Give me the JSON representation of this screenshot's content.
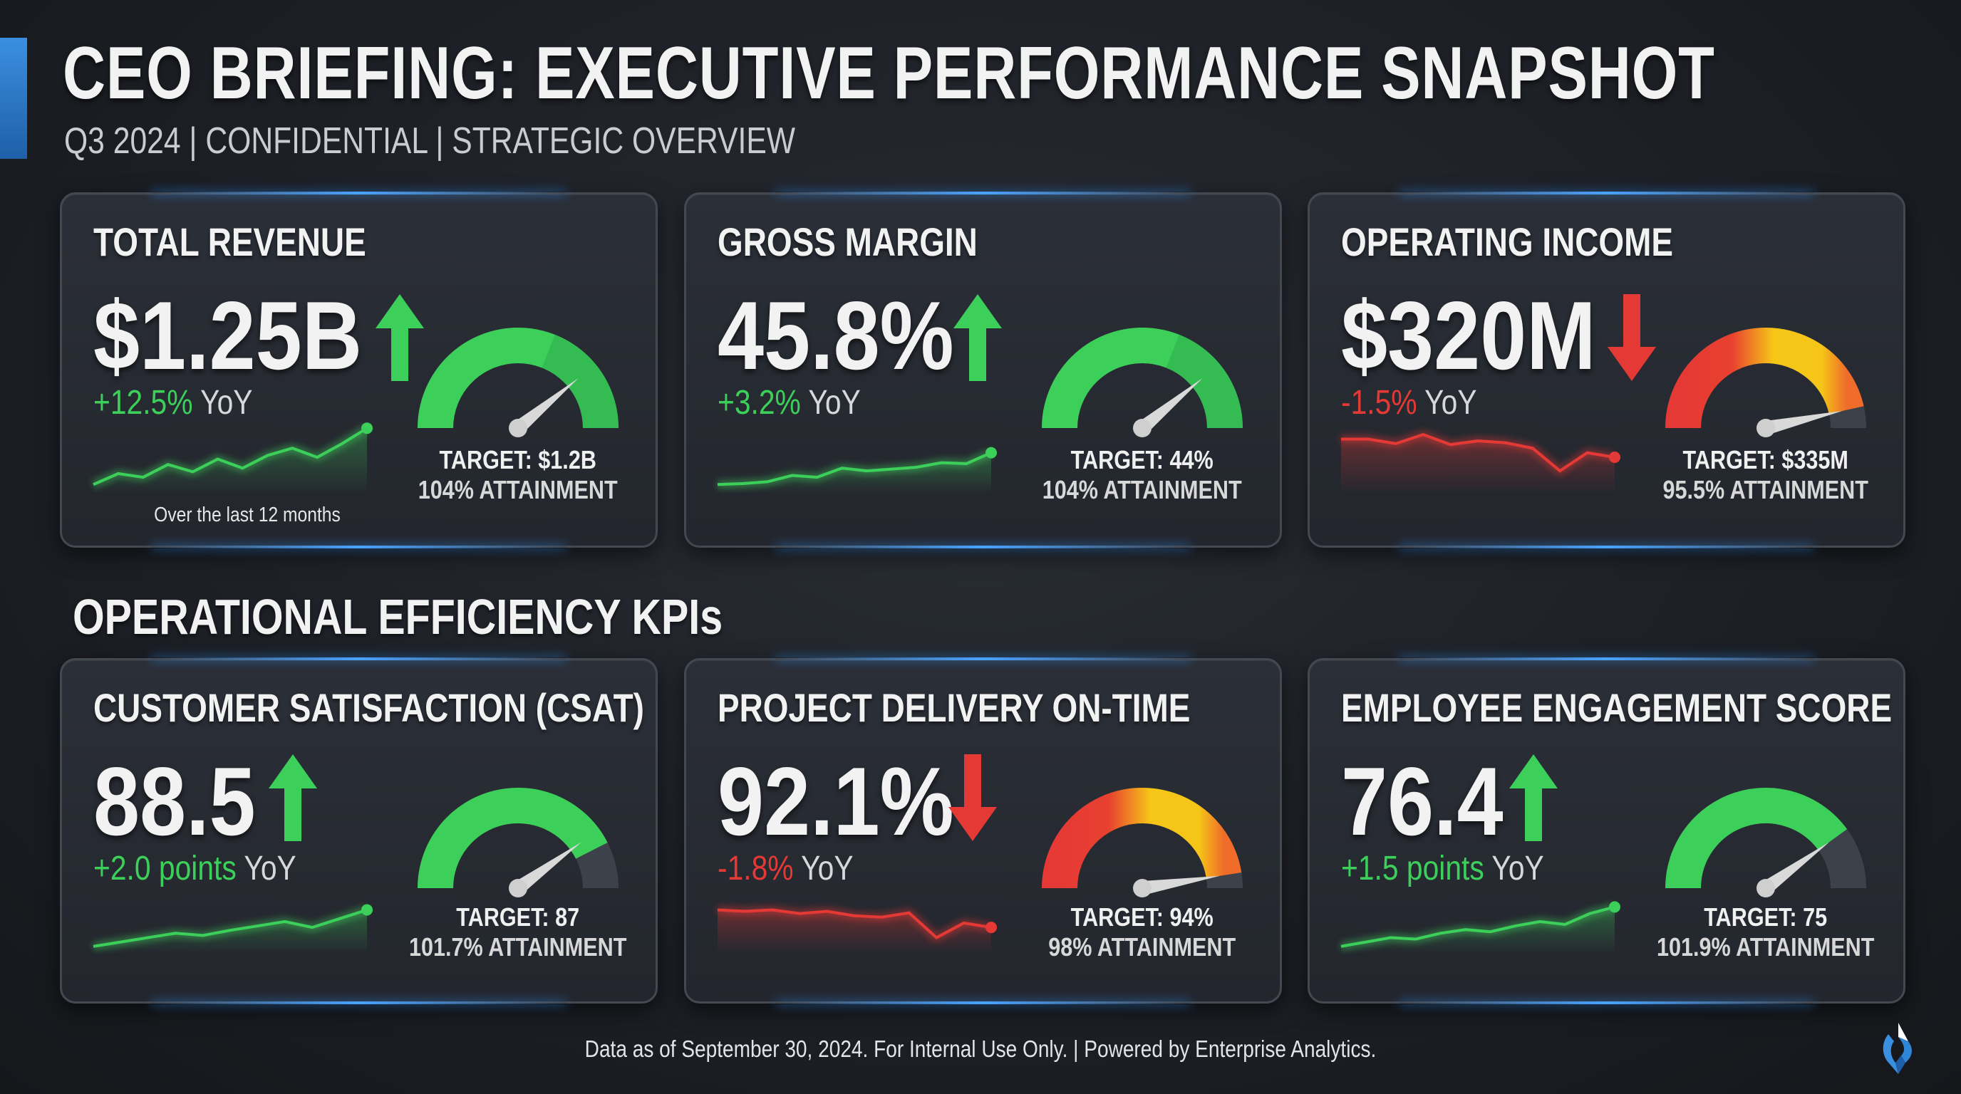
{
  "header": {
    "title": "CEO BRIEFING: EXECUTIVE PERFORMANCE SNAPSHOT",
    "subtitle": "Q3 2024 | CONFIDENTIAL | STRATEGIC OVERVIEW"
  },
  "section_heading": "OPERATIONAL EFFICIENCY KPIs",
  "colors": {
    "positive": "#3ccf5a",
    "negative": "#e53935",
    "warning": "#f5c518",
    "accent": "#3b8fe0"
  },
  "cards": [
    {
      "title": "TOTAL REVENUE",
      "value": "$1.25B",
      "arrow": "up",
      "change": "+12.5%",
      "suffix": " YoY",
      "status": "positive",
      "target": "TARGET: $1.2B",
      "attainment": "104% ATTAINMENT",
      "gauge_fill": 1.0,
      "needle": 0.78,
      "note": "Over the last 12 months",
      "sparkline": [
        10,
        22,
        18,
        32,
        24,
        38,
        28,
        42,
        50,
        40,
        55,
        72
      ]
    },
    {
      "title": "GROSS MARGIN",
      "value": "45.8%",
      "arrow": "up",
      "change": "+3.2%",
      "suffix": " YoY",
      "status": "positive",
      "target": "TARGET: 44%",
      "attainment": "104% ATTAINMENT",
      "gauge_fill": 1.0,
      "needle": 0.78,
      "sparkline": [
        10,
        11,
        13,
        20,
        18,
        28,
        25,
        27,
        29,
        34,
        33,
        45
      ]
    },
    {
      "title": "OPERATING INCOME",
      "value": "$320M",
      "arrow": "down",
      "change": "-1.5%",
      "suffix": " YoY",
      "status": "negative",
      "target": "TARGET: $335M",
      "attainment": "95.5% ATTAINMENT",
      "gauge_fill": 0.93,
      "needle": 0.93,
      "sparkline": [
        60,
        60,
        55,
        65,
        54,
        58,
        56,
        50,
        25,
        45,
        40
      ]
    },
    {
      "title": "CUSTOMER SATISFACTION (CSAT)",
      "value": "88.5",
      "arrow": "up",
      "change": "+2.0 points",
      "suffix": " YoY",
      "status": "positive",
      "target": "TARGET: 87",
      "attainment": "101.7% ATTAINMENT",
      "gauge_fill": 0.85,
      "needle": 0.8,
      "sparkline": [
        10,
        16,
        22,
        28,
        25,
        32,
        38,
        44,
        36,
        48,
        60
      ]
    },
    {
      "title": "PROJECT DELIVERY ON-TIME",
      "value": "92.1%",
      "arrow": "down",
      "change": "-1.8%",
      "suffix": " YoY",
      "status": "negative",
      "target": "TARGET: 94%",
      "attainment": "98% ATTAINMENT",
      "gauge_fill": 0.95,
      "needle": 0.95,
      "sparkline": [
        60,
        58,
        60,
        55,
        58,
        52,
        50,
        56,
        22,
        42,
        36
      ]
    },
    {
      "title": "EMPLOYEE ENGAGEMENT SCORE",
      "value": "76.4",
      "arrow": "up",
      "change": "+1.5 points",
      "suffix": " YoY",
      "status": "positive",
      "target": "TARGET: 75",
      "attainment": "101.9% ATTAINMENT",
      "gauge_fill": 0.8,
      "needle": 0.8,
      "sparkline": [
        10,
        16,
        22,
        20,
        28,
        33,
        30,
        38,
        44,
        40,
        55,
        64
      ]
    }
  ],
  "footer": "Data as of September 30, 2024. For Internal Use Only.  |  Powered by Enterprise Analytics."
}
